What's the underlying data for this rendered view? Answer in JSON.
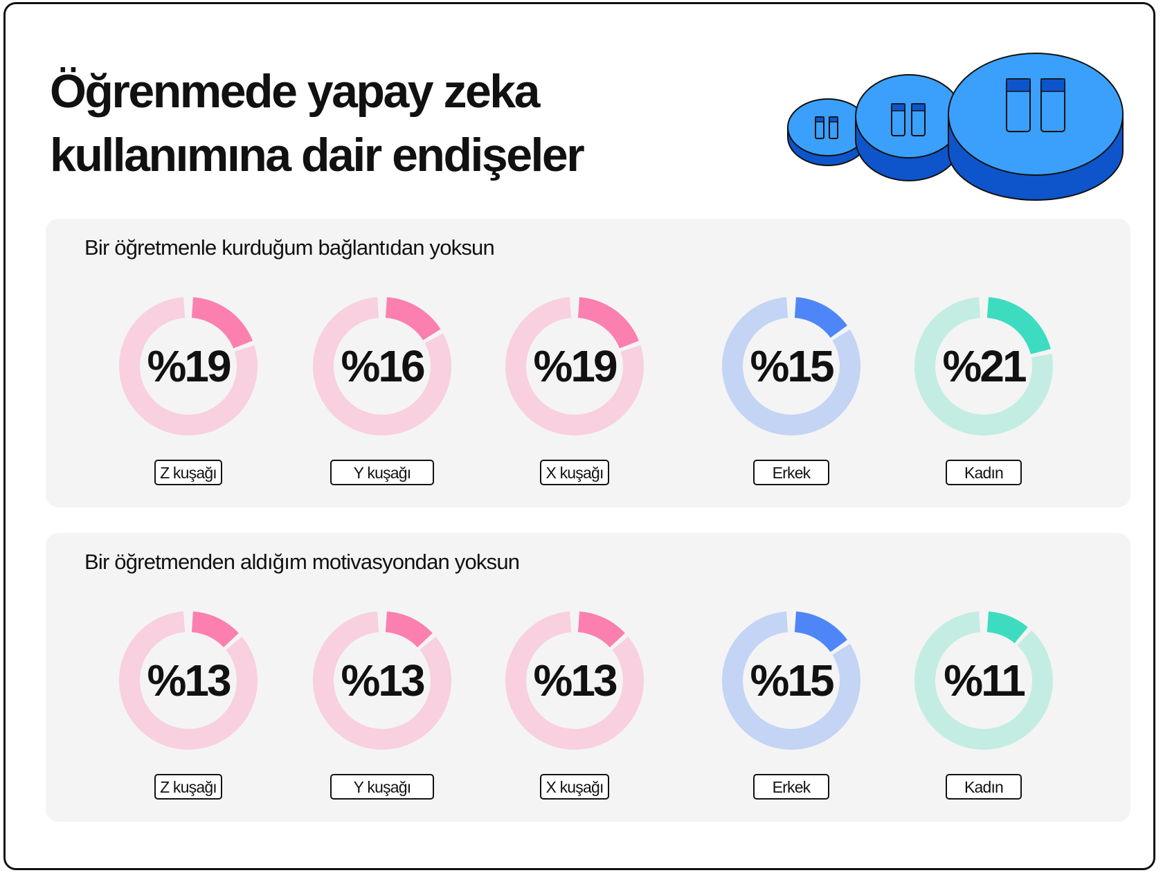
{
  "title": {
    "line1": "Öğrenmede yapay zeka",
    "line2": "kullanımına dair  endişeler"
  },
  "colors": {
    "gen_fill": "#fb80b0",
    "gen_track": "#f8d0df",
    "male_fill": "#4f86f7",
    "male_track": "#c3d4f5",
    "female_fill": "#3ddcc0",
    "female_track": "#c3ede2",
    "panel_bg": "#f4f4f4",
    "coin_top": "#3aa0fb",
    "coin_side": "#0e55cc"
  },
  "illustration": {
    "icon": "stacked-coins-icon"
  },
  "chart_data": [
    {
      "type": "donut",
      "title": "Bir öğretmenle kurduğum bağlantıdan yoksun",
      "unit": "%",
      "categories": [
        "Z kuşağı",
        "Y kuşağı",
        "X kuşağı",
        "Erkek",
        "Kadın"
      ],
      "values": [
        19,
        16,
        19,
        15,
        21
      ],
      "labels": [
        "%19",
        "%16",
        "%19",
        "%15",
        "%21"
      ],
      "colors": [
        "#fb80b0",
        "#fb80b0",
        "#fb80b0",
        "#4f86f7",
        "#3ddcc0"
      ]
    },
    {
      "type": "donut",
      "title": "Bir öğretmenden aldığım motivasyondan yoksun",
      "unit": "%",
      "categories": [
        "Z kuşağı",
        "Y kuşağı",
        "X kuşağı",
        "Erkek",
        "Kadın"
      ],
      "values": [
        13,
        13,
        13,
        15,
        11
      ],
      "labels": [
        "%13",
        "%13",
        "%13",
        "%15",
        "%11"
      ],
      "colors": [
        "#fb80b0",
        "#fb80b0",
        "#fb80b0",
        "#4f86f7",
        "#3ddcc0"
      ]
    }
  ]
}
